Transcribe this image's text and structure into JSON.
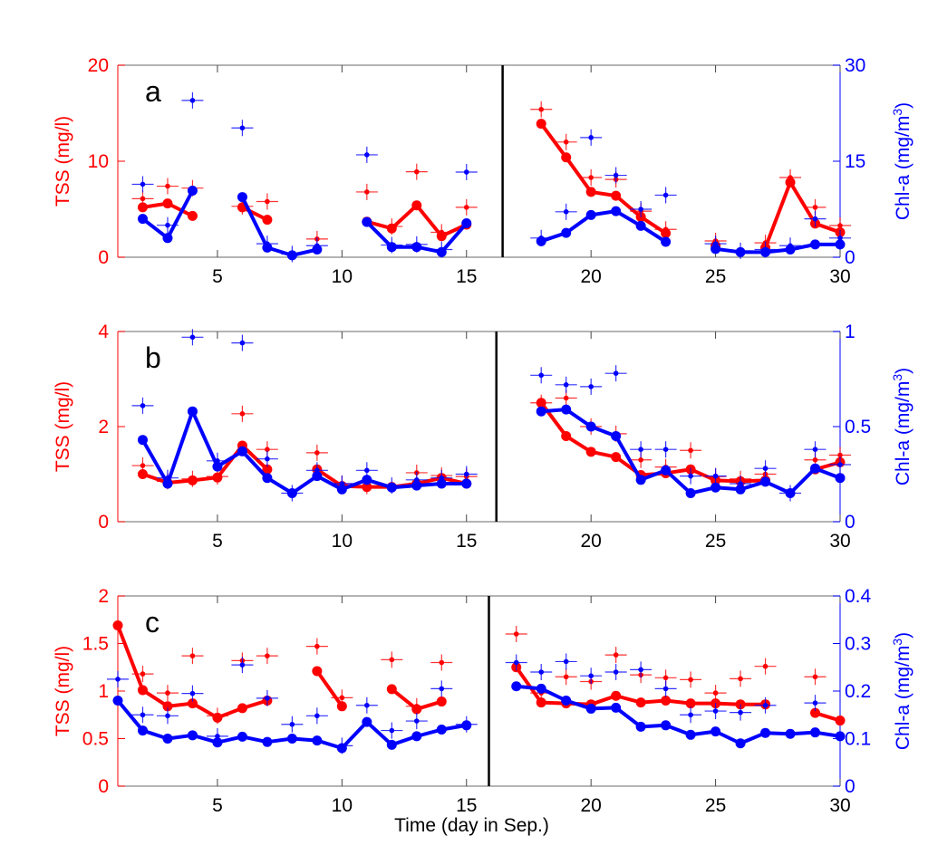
{
  "chart_data": [
    {
      "type": "line",
      "panel_label": "a",
      "xlim": [
        1,
        30
      ],
      "x_ticks": [
        5,
        10,
        15,
        20,
        25,
        30
      ],
      "left_axis": {
        "label": "TSS (mg/l)",
        "lim": [
          0,
          20
        ],
        "ticks": [
          0,
          10,
          20
        ],
        "color": "#ff0000"
      },
      "right_axis": {
        "label": "Chl-a (mg/m",
        "label_sup": "3",
        "label_end": ")",
        "lim": [
          0,
          30
        ],
        "ticks": [
          0,
          15,
          30
        ],
        "color": "#0000ff"
      },
      "separator_day": 16.45,
      "days": [
        1,
        2,
        3,
        4,
        5,
        6,
        7,
        8,
        9,
        10,
        11,
        12,
        13,
        14,
        15,
        16,
        17,
        18,
        19,
        20,
        21,
        22,
        23,
        24,
        25,
        26,
        27,
        28,
        29,
        30
      ],
      "series": [
        {
          "axis": "left",
          "style": "line",
          "color": "#ff0000",
          "y": [
            null,
            5.2,
            5.6,
            4.3,
            null,
            5.2,
            3.9,
            null,
            null,
            null,
            3.7,
            3.0,
            5.4,
            2.2,
            3.4,
            null,
            null,
            13.9,
            10.4,
            6.8,
            6.4,
            4.2,
            2.5,
            null,
            1.2,
            null,
            1.0,
            7.8,
            3.5,
            2.6
          ]
        },
        {
          "axis": "left",
          "style": "cross",
          "color": "#ff0000",
          "y": [
            null,
            6.1,
            7.4,
            7.2,
            null,
            5.3,
            5.8,
            null,
            1.9,
            null,
            6.8,
            3.2,
            8.9,
            2.6,
            5.2,
            null,
            null,
            15.4,
            12.0,
            8.3,
            8.1,
            4.8,
            2.9,
            null,
            1.7,
            null,
            1.5,
            8.3,
            5.2,
            3.3
          ]
        },
        {
          "axis": "right",
          "style": "line",
          "color": "#0000ff",
          "y": [
            null,
            6.0,
            3.0,
            10.4,
            null,
            9.4,
            1.5,
            0.3,
            1.2,
            null,
            5.5,
            1.6,
            1.6,
            0.8,
            5.3,
            null,
            null,
            2.5,
            3.8,
            6.6,
            7.2,
            4.9,
            2.4,
            null,
            1.3,
            0.8,
            0.8,
            1.2,
            2.0,
            2.0
          ]
        },
        {
          "axis": "right",
          "style": "cross",
          "color": "#0000ff",
          "y": [
            null,
            11.4,
            5.0,
            24.5,
            null,
            20.2,
            2.1,
            0.5,
            1.8,
            null,
            16.0,
            1.9,
            2.0,
            1.2,
            13.3,
            null,
            null,
            3.0,
            7.1,
            18.7,
            12.8,
            7.5,
            9.7,
            null,
            2.1,
            1.0,
            1.2,
            1.8,
            6.0,
            3.0
          ]
        }
      ]
    },
    {
      "type": "line",
      "panel_label": "b",
      "xlim": [
        1,
        30
      ],
      "x_ticks": [
        5,
        10,
        15,
        20,
        25,
        30
      ],
      "left_axis": {
        "label": "TSS (mg/l)",
        "lim": [
          0,
          4
        ],
        "ticks": [
          0,
          2,
          4
        ],
        "color": "#ff0000"
      },
      "right_axis": {
        "label": "Chl-a (mg/m",
        "label_sup": "3",
        "label_end": ")",
        "lim": [
          0,
          1
        ],
        "ticks": [
          0,
          0.5,
          1
        ],
        "color": "#0000ff"
      },
      "separator_day": 16.2,
      "days": [
        1,
        2,
        3,
        4,
        5,
        6,
        7,
        8,
        9,
        10,
        11,
        12,
        13,
        14,
        15,
        16,
        17,
        18,
        19,
        20,
        21,
        22,
        23,
        24,
        25,
        26,
        27,
        28,
        29,
        30
      ],
      "series": [
        {
          "axis": "left",
          "style": "line",
          "color": "#ff0000",
          "y": [
            null,
            1.0,
            0.82,
            0.87,
            0.93,
            1.6,
            1.1,
            null,
            1.1,
            0.75,
            0.73,
            0.73,
            0.8,
            0.92,
            0.8,
            null,
            null,
            2.5,
            1.8,
            1.47,
            1.36,
            0.98,
            1.02,
            1.1,
            0.87,
            0.85,
            0.87,
            null,
            1.1,
            1.25
          ]
        },
        {
          "axis": "left",
          "style": "cross",
          "color": "#ff0000",
          "y": [
            null,
            1.18,
            0.85,
            0.9,
            0.95,
            2.27,
            1.52,
            null,
            1.45,
            0.8,
            0.75,
            null,
            1.03,
            0.97,
            0.95,
            null,
            null,
            2.5,
            2.6,
            2.0,
            1.85,
            1.3,
            1.15,
            1.5,
            0.95,
            0.9,
            1.0,
            null,
            1.3,
            1.4
          ]
        },
        {
          "axis": "right",
          "style": "line",
          "color": "#0000ff",
          "y": [
            null,
            0.43,
            0.2,
            0.58,
            0.29,
            0.37,
            0.23,
            0.15,
            0.24,
            0.17,
            0.22,
            0.18,
            0.19,
            0.2,
            0.2,
            null,
            null,
            0.58,
            0.59,
            0.5,
            0.45,
            0.22,
            0.27,
            0.15,
            0.18,
            0.17,
            0.21,
            0.15,
            0.28,
            0.23
          ]
        },
        {
          "axis": "right",
          "style": "cross",
          "color": "#0000ff",
          "y": [
            null,
            0.61,
            0.23,
            0.97,
            0.32,
            0.94,
            0.33,
            0.15,
            0.27,
            0.2,
            0.27,
            0.19,
            0.22,
            0.23,
            0.25,
            null,
            null,
            0.77,
            0.72,
            0.71,
            0.78,
            0.38,
            0.38,
            0.24,
            0.24,
            0.2,
            0.28,
            0.15,
            0.38,
            0.3
          ]
        }
      ]
    },
    {
      "type": "line",
      "panel_label": "c",
      "xlim": [
        1,
        30
      ],
      "x_ticks": [
        5,
        10,
        15,
        20,
        25,
        30
      ],
      "xlabel": "Time (day in Sep.)",
      "left_axis": {
        "label": "TSS (mg/l)",
        "lim": [
          0,
          2
        ],
        "ticks": [
          0,
          0.5,
          1,
          1.5,
          2
        ],
        "color": "#ff0000"
      },
      "right_axis": {
        "label": "Chl-a (mg/m",
        "label_sup": "3",
        "label_end": ")",
        "lim": [
          0,
          0.4
        ],
        "ticks": [
          0,
          0.1,
          0.2,
          0.3,
          0.4
        ],
        "color": "#0000ff"
      },
      "separator_day": 15.9,
      "days": [
        1,
        2,
        3,
        4,
        5,
        6,
        7,
        8,
        9,
        10,
        11,
        12,
        13,
        14,
        15,
        16,
        17,
        18,
        19,
        20,
        21,
        22,
        23,
        24,
        25,
        26,
        27,
        28,
        29,
        30
      ],
      "series": [
        {
          "axis": "left",
          "style": "line",
          "color": "#ff0000",
          "y": [
            1.69,
            1.01,
            0.84,
            0.87,
            0.72,
            0.82,
            0.9,
            null,
            1.21,
            0.84,
            null,
            1.02,
            0.81,
            0.89,
            null,
            null,
            1.25,
            0.88,
            0.87,
            0.86,
            0.95,
            0.88,
            0.9,
            0.87,
            0.87,
            0.86,
            0.86,
            null,
            0.77,
            0.69
          ]
        },
        {
          "axis": "left",
          "style": "cross",
          "color": "#ff0000",
          "y": [
            null,
            1.18,
            0.98,
            1.37,
            0.74,
            1.32,
            1.37,
            null,
            1.47,
            0.93,
            null,
            1.33,
            0.84,
            1.3,
            null,
            null,
            1.6,
            0.98,
            1.15,
            1.1,
            1.38,
            1.17,
            1.14,
            1.12,
            0.98,
            1.13,
            1.26,
            null,
            1.15,
            null
          ]
        },
        {
          "axis": "right",
          "style": "line",
          "color": "#0000ff",
          "y": [
            0.18,
            0.117,
            0.1,
            0.107,
            0.092,
            0.104,
            0.093,
            0.1,
            0.096,
            0.08,
            0.135,
            0.087,
            0.105,
            0.119,
            0.128,
            null,
            0.21,
            0.205,
            0.18,
            0.163,
            0.165,
            0.125,
            0.128,
            0.108,
            0.115,
            0.09,
            0.112,
            0.11,
            0.113,
            0.105
          ]
        },
        {
          "axis": "right",
          "style": "cross",
          "color": "#0000ff",
          "y": [
            0.225,
            0.15,
            0.148,
            0.195,
            0.105,
            0.255,
            0.185,
            0.13,
            0.148,
            0.085,
            0.17,
            0.117,
            0.137,
            0.205,
            0.13,
            null,
            0.26,
            0.24,
            0.262,
            0.232,
            0.24,
            0.245,
            0.205,
            0.15,
            0.158,
            0.155,
            0.17,
            null,
            0.175,
            null
          ]
        }
      ]
    }
  ]
}
